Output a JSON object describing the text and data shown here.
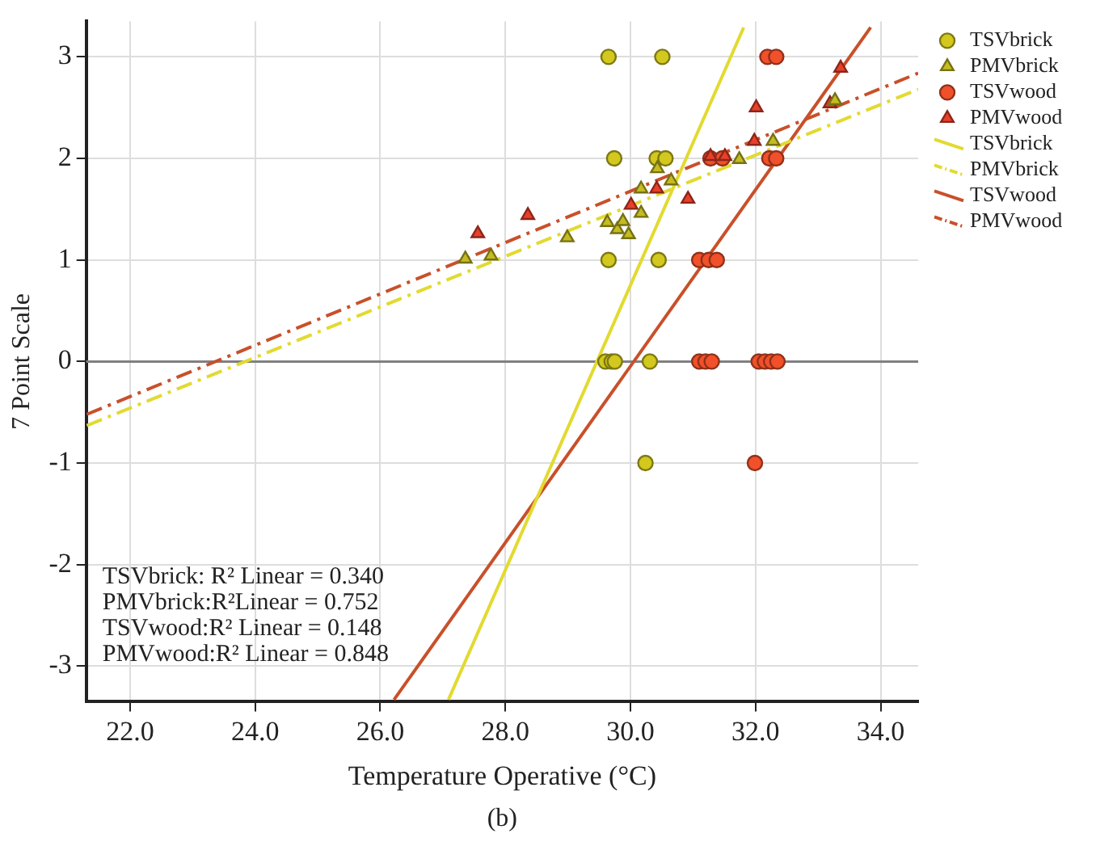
{
  "chart_data": {
    "type": "scatter",
    "xlabel": "Temperature Operative (°C)",
    "ylabel": "7 Point Scale",
    "xlim": [
      21.3,
      34.6
    ],
    "xticks": [
      {
        "value": 22,
        "label": "22.0"
      },
      {
        "value": 24,
        "label": "24.0"
      },
      {
        "value": 26,
        "label": "26.0"
      },
      {
        "value": 28,
        "label": "28.0"
      },
      {
        "value": 30,
        "label": "30.0"
      },
      {
        "value": 32,
        "label": "32.0"
      },
      {
        "value": 34,
        "label": "34.0"
      }
    ],
    "ylim": [
      -3.35,
      3.35
    ],
    "yticks": [
      -3,
      -2,
      -1,
      0,
      1,
      2,
      3
    ],
    "grid": true,
    "legend": "right",
    "ref_lines": [
      {
        "axis": "y",
        "value": 0,
        "color": "#808080"
      }
    ],
    "annotations": [
      "TSVbrick: R² Linear = 0.340",
      "PMVbrick:R²Linear = 0.752",
      "TSVwood:R² Linear = 0.148",
      "PMVwood:R² Linear = 0.848",
      "(b)"
    ],
    "series": [
      {
        "name": "TSVbrick",
        "type": "scatter",
        "marker": "circle",
        "color": "#d2c81e",
        "x": [
          29.65,
          30.51,
          29.74,
          30.42,
          30.56,
          29.65,
          30.45,
          29.6,
          29.7,
          29.75,
          30.31,
          30.24
        ],
        "values": [
          3,
          3,
          2,
          2,
          2,
          1,
          1,
          0,
          0,
          0,
          0,
          -1
        ]
      },
      {
        "name": "PMVbrick",
        "type": "scatter",
        "marker": "triangle",
        "color": "#c4bc22",
        "x": [
          27.36,
          27.77,
          28.99,
          29.63,
          29.79,
          29.88,
          29.97,
          30.17,
          30.17,
          30.43,
          30.65,
          31.74,
          32.28,
          33.27
        ],
        "values": [
          1.01,
          1.04,
          1.22,
          1.37,
          1.3,
          1.38,
          1.25,
          1.46,
          1.7,
          1.9,
          1.78,
          1.99,
          2.17,
          2.57
        ]
      },
      {
        "name": "TSVwood",
        "type": "scatter",
        "marker": "circle",
        "color": "#f0502a",
        "x": [
          32.19,
          32.33,
          31.28,
          31.47,
          32.22,
          32.33,
          31.1,
          31.25,
          31.38,
          31.1,
          31.2,
          31.3,
          32.05,
          32.15,
          32.25,
          32.35,
          31.99
        ],
        "values": [
          3,
          3,
          2,
          2,
          2,
          2,
          1,
          1,
          1,
          0,
          0,
          0,
          0,
          0,
          0,
          0,
          -1
        ]
      },
      {
        "name": "PMVwood",
        "type": "scatter",
        "marker": "triangle",
        "color": "#e8402a",
        "x": [
          27.56,
          28.36,
          30.01,
          30.42,
          30.92,
          31.28,
          31.51,
          32.01,
          31.98,
          33.19,
          33.36
        ],
        "values": [
          1.26,
          1.44,
          1.54,
          1.7,
          1.6,
          2.02,
          2.02,
          2.5,
          2.17,
          2.54,
          2.89
        ]
      },
      {
        "name": "TSVbrick",
        "type": "line",
        "line_style": "solid",
        "color": "#e2da30",
        "x": [
          27.09,
          31.81
        ],
        "values": [
          -3.33,
          3.29
        ]
      },
      {
        "name": "PMVbrick",
        "type": "line",
        "line_style": "dashdot",
        "color": "#e2da30",
        "x": [
          21.31,
          34.6
        ],
        "values": [
          -0.63,
          2.68
        ]
      },
      {
        "name": "TSVwood",
        "type": "line",
        "line_style": "solid",
        "color": "#c8502a",
        "x": [
          26.22,
          33.84
        ],
        "values": [
          -3.33,
          3.29
        ]
      },
      {
        "name": "PMVwood",
        "type": "line",
        "line_style": "dashdot",
        "color": "#c8502a",
        "x": [
          21.31,
          34.6
        ],
        "values": [
          -0.52,
          2.84
        ]
      }
    ]
  }
}
